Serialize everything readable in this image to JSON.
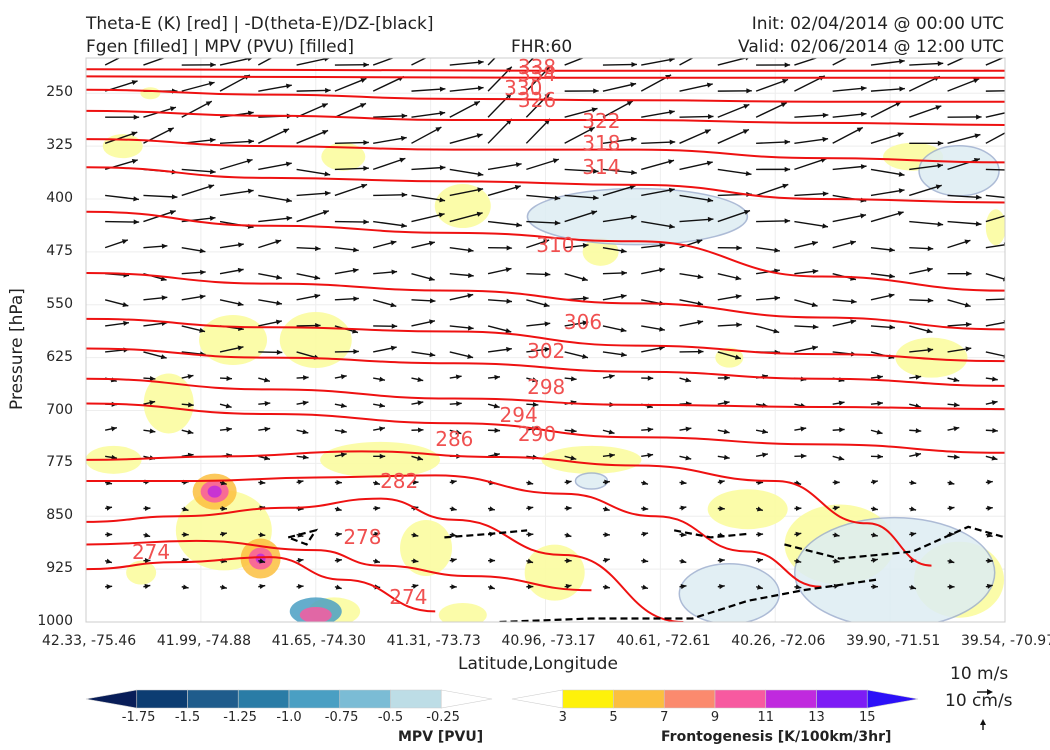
{
  "header": {
    "title_line1_left": "Theta-E (K) [red] | -D(theta-E)/DZ-[black]",
    "title_line2_left": "Fgen [filled] | MPV (PVU) [filled]",
    "fhr": "FHR:60",
    "init": "Init: 02/04/2014 @ 00:00 UTC",
    "valid": "Valid: 02/06/2014 @ 12:00 UTC"
  },
  "chart_data": {
    "type": "cross-section",
    "ylabel": "Pressure [hPa]",
    "xlabel": "Latitude,Longitude",
    "y_axis_inverted": true,
    "ylim": [
      1000,
      200
    ],
    "y_ticks": [
      "250",
      "325",
      "400",
      "475",
      "550",
      "625",
      "700",
      "775",
      "850",
      "925",
      "1000"
    ],
    "x_ticks": [
      "42.33, -75.46",
      "41.99, -74.88",
      "41.65, -74.30",
      "41.31, -73.73",
      "40.96, -73.17",
      "40.61, -72.61",
      "40.26, -72.06",
      "39.90, -71.51",
      "39.54, -70.97"
    ],
    "theta_e_contour_labels": [
      "338",
      "334",
      "330",
      "326",
      "322",
      "318",
      "314",
      "310",
      "306",
      "302",
      "298",
      "294",
      "290",
      "286",
      "282",
      "278",
      "274",
      "274"
    ],
    "theta_e_contours": [
      {
        "level": 274,
        "x": [
          0,
          0.1,
          0.2,
          0.28,
          0.38
        ],
        "p": [
          925,
          915,
          908,
          940,
          985
        ]
      },
      {
        "level": 278,
        "x": [
          0,
          0.12,
          0.25,
          0.32,
          0.42,
          0.55
        ],
        "p": [
          890,
          885,
          898,
          920,
          935,
          955
        ]
      },
      {
        "level": 282,
        "x": [
          0,
          0.1,
          0.22,
          0.32,
          0.4,
          0.52,
          0.65
        ],
        "p": [
          858,
          850,
          838,
          825,
          855,
          905,
          1000
        ]
      },
      {
        "level": 286,
        "x": [
          0,
          0.12,
          0.25,
          0.38,
          0.52,
          0.62,
          0.72,
          0.8
        ],
        "p": [
          800,
          800,
          795,
          792,
          818,
          850,
          900,
          950
        ]
      },
      {
        "level": 290,
        "x": [
          0,
          0.15,
          0.3,
          0.45,
          0.6,
          0.75,
          0.85,
          0.92
        ],
        "p": [
          770,
          765,
          758,
          766,
          778,
          800,
          860,
          920
        ]
      },
      {
        "level": 294,
        "x": [
          0,
          0.2,
          0.4,
          0.6,
          0.8,
          1.0
        ],
        "p": [
          690,
          705,
          718,
          738,
          748,
          760
        ]
      },
      {
        "level": 298,
        "x": [
          0,
          0.2,
          0.4,
          0.6,
          0.8,
          1.0
        ],
        "p": [
          655,
          670,
          683,
          692,
          695,
          698
        ]
      },
      {
        "level": 302,
        "x": [
          0,
          0.2,
          0.4,
          0.6,
          0.8,
          1.0
        ],
        "p": [
          612,
          625,
          633,
          645,
          655,
          665
        ]
      },
      {
        "level": 306,
        "x": [
          0,
          0.2,
          0.4,
          0.6,
          0.8,
          1.0
        ],
        "p": [
          570,
          582,
          588,
          608,
          620,
          630
        ]
      },
      {
        "level": 310,
        "x": [
          0,
          0.2,
          0.4,
          0.6,
          0.8,
          1.0
        ],
        "p": [
          505,
          520,
          530,
          548,
          568,
          585
        ]
      },
      {
        "level": 314,
        "x": [
          0,
          0.2,
          0.4,
          0.6,
          0.8,
          1.0
        ],
        "p": [
          418,
          438,
          448,
          460,
          510,
          530
        ]
      },
      {
        "level": 318,
        "x": [
          0,
          0.2,
          0.4,
          0.6,
          0.8,
          1.0
        ],
        "p": [
          355,
          370,
          375,
          380,
          400,
          405
        ]
      },
      {
        "level": 322,
        "x": [
          0,
          0.2,
          0.4,
          0.6,
          0.8,
          1.0
        ],
        "p": [
          315,
          325,
          330,
          330,
          342,
          348
        ]
      },
      {
        "level": 326,
        "x": [
          0,
          0.2,
          0.4,
          0.6,
          0.8,
          1.0
        ],
        "p": [
          275,
          282,
          288,
          288,
          292,
          295
        ]
      },
      {
        "level": 330,
        "x": [
          0,
          0.2,
          0.4,
          0.6,
          0.8,
          1.0
        ],
        "p": [
          245,
          252,
          258,
          260,
          262,
          262
        ]
      },
      {
        "level": 334,
        "x": [
          0,
          0.5,
          1.0
        ],
        "p": [
          226,
          228,
          228
        ]
      },
      {
        "level": 338,
        "x": [
          0,
          0.5,
          1.0
        ],
        "p": [
          216,
          218,
          218
        ]
      }
    ],
    "mpv_colorbar": {
      "label": "MPV [PVU]",
      "ticks": [
        "-1.75",
        "-1.5",
        "-1.25",
        "-1.0",
        "-0.75",
        "-0.5",
        "-0.25"
      ],
      "colors": [
        "#081d58",
        "#0c3d72",
        "#1f5c8c",
        "#2a7ca6",
        "#4a9fc3",
        "#7bbcd5",
        "#bddde6",
        "#ffffff"
      ]
    },
    "fgen_colorbar": {
      "label": "Frontogenesis [K/100km/3hr]",
      "ticks": [
        "3",
        "5",
        "7",
        "9",
        "11",
        "13",
        "15"
      ],
      "colors": [
        "#ffffff",
        "#fef10a",
        "#fbbf3f",
        "#fb8a6e",
        "#f75aa0",
        "#c02ade",
        "#7d1cf5",
        "#2c10f8"
      ]
    },
    "vector_key": {
      "label1": "10 m/s",
      "label2": "10 cm/s"
    },
    "colors": {
      "theta_e": "#ee1111",
      "ddz": "#000000",
      "fgen_light": "#fbfca0",
      "mpv_light": "#ddedf3",
      "mpv_edge": "#9fb0cf"
    }
  }
}
